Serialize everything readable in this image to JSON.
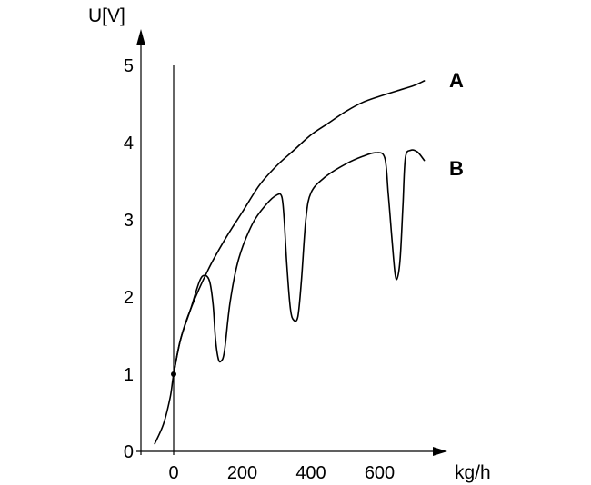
{
  "chart_data": {
    "type": "line",
    "ylabel": "U[V]",
    "xlabel": "kg/h",
    "xlim": [
      -80,
      780
    ],
    "ylim": [
      0,
      5.3
    ],
    "x_ticks": [
      0,
      200,
      400,
      600
    ],
    "y_ticks": [
      0,
      1,
      2,
      3,
      4,
      5
    ],
    "grid": false,
    "legend": "none",
    "series": [
      {
        "name": "A",
        "points": [
          [
            -55,
            0.1
          ],
          [
            -30,
            0.35
          ],
          [
            -10,
            0.7
          ],
          [
            0,
            1.0
          ],
          [
            20,
            1.45
          ],
          [
            50,
            1.85
          ],
          [
            100,
            2.35
          ],
          [
            150,
            2.75
          ],
          [
            200,
            3.1
          ],
          [
            250,
            3.45
          ],
          [
            300,
            3.7
          ],
          [
            350,
            3.9
          ],
          [
            400,
            4.1
          ],
          [
            450,
            4.25
          ],
          [
            500,
            4.4
          ],
          [
            550,
            4.52
          ],
          [
            600,
            4.6
          ],
          [
            650,
            4.67
          ],
          [
            700,
            4.74
          ],
          [
            730,
            4.8
          ]
        ]
      },
      {
        "name": "B",
        "points": [
          [
            0,
            1.0
          ],
          [
            20,
            1.45
          ],
          [
            50,
            1.85
          ],
          [
            75,
            2.2
          ],
          [
            90,
            2.28
          ],
          [
            105,
            2.2
          ],
          [
            115,
            1.9
          ],
          [
            122,
            1.45
          ],
          [
            130,
            1.2
          ],
          [
            138,
            1.17
          ],
          [
            148,
            1.3
          ],
          [
            165,
            1.95
          ],
          [
            190,
            2.5
          ],
          [
            230,
            2.95
          ],
          [
            270,
            3.2
          ],
          [
            300,
            3.32
          ],
          [
            315,
            3.3
          ],
          [
            322,
            3.0
          ],
          [
            330,
            2.4
          ],
          [
            340,
            1.85
          ],
          [
            350,
            1.7
          ],
          [
            362,
            1.75
          ],
          [
            372,
            2.2
          ],
          [
            385,
            3.0
          ],
          [
            400,
            3.35
          ],
          [
            440,
            3.55
          ],
          [
            500,
            3.72
          ],
          [
            550,
            3.82
          ],
          [
            590,
            3.87
          ],
          [
            615,
            3.8
          ],
          [
            625,
            3.35
          ],
          [
            635,
            2.8
          ],
          [
            645,
            2.3
          ],
          [
            652,
            2.25
          ],
          [
            660,
            2.5
          ],
          [
            668,
            3.2
          ],
          [
            675,
            3.8
          ],
          [
            690,
            3.9
          ],
          [
            710,
            3.88
          ],
          [
            730,
            3.77
          ]
        ]
      }
    ],
    "marked_point": [
      0,
      1
    ]
  }
}
